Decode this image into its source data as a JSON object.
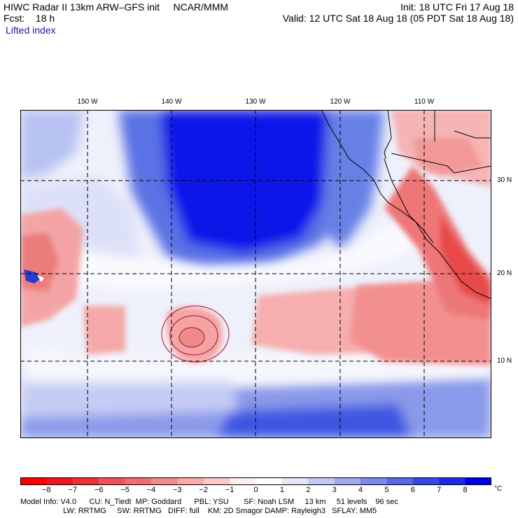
{
  "header": {
    "title": "HIWC Radar II 13km ARW–GFS init",
    "org": "NCAR/MMM",
    "init": "Init: 18 UTC Fri 17 Aug 18",
    "fcst_label": "Fcst:",
    "fcst_value": "18 h",
    "valid": "Valid: 12 UTC Sat 18 Aug 18 (05 PDT Sat 18 Aug 18)",
    "field": "Lifted index"
  },
  "map": {
    "longitude_labels": [
      "150 W",
      "140 W",
      "130 W",
      "120 W",
      "110 W"
    ],
    "latitude_labels": [
      "30 N",
      "20 N",
      "10 N"
    ],
    "colors": {
      "stable_strong": "#0000e6",
      "stable": "#3d5ce0",
      "neutral": "#ffffff",
      "unstable": "#f4a0a0",
      "unstable_strong": "#e23a3a"
    }
  },
  "colorbar": {
    "labels": [
      "−8",
      "−7",
      "−6",
      "−5",
      "−4",
      "−3",
      "−2",
      "−1",
      "0",
      "1",
      "2",
      "3",
      "4",
      "5",
      "6",
      "7",
      "8"
    ],
    "unit": "°C",
    "colors": [
      "#ff0000",
      "#f2141e",
      "#ec3236",
      "#f0505a",
      "#f06e72",
      "#f48c8e",
      "#f8aaaa",
      "#fcc8c8",
      "#fef0f0",
      "#ffffff",
      "#e4e6f8",
      "#c4c8f4",
      "#a0a8ee",
      "#7c88ea",
      "#5868e6",
      "#3848e6",
      "#1c2ae8",
      "#0000e6"
    ]
  },
  "footer": {
    "line1": "Model Info: V4.0      CU: N_Tiedt  MP: Goddard      PBL: YSU       SF: Noah LSM     13 km     51 levels    96 sec",
    "line2": "                    LW: RRTMG     SW: RRTMG   DIFF: full    KM: 2D Smagor DAMP: Rayleigh3   SFLAY: MM5"
  }
}
